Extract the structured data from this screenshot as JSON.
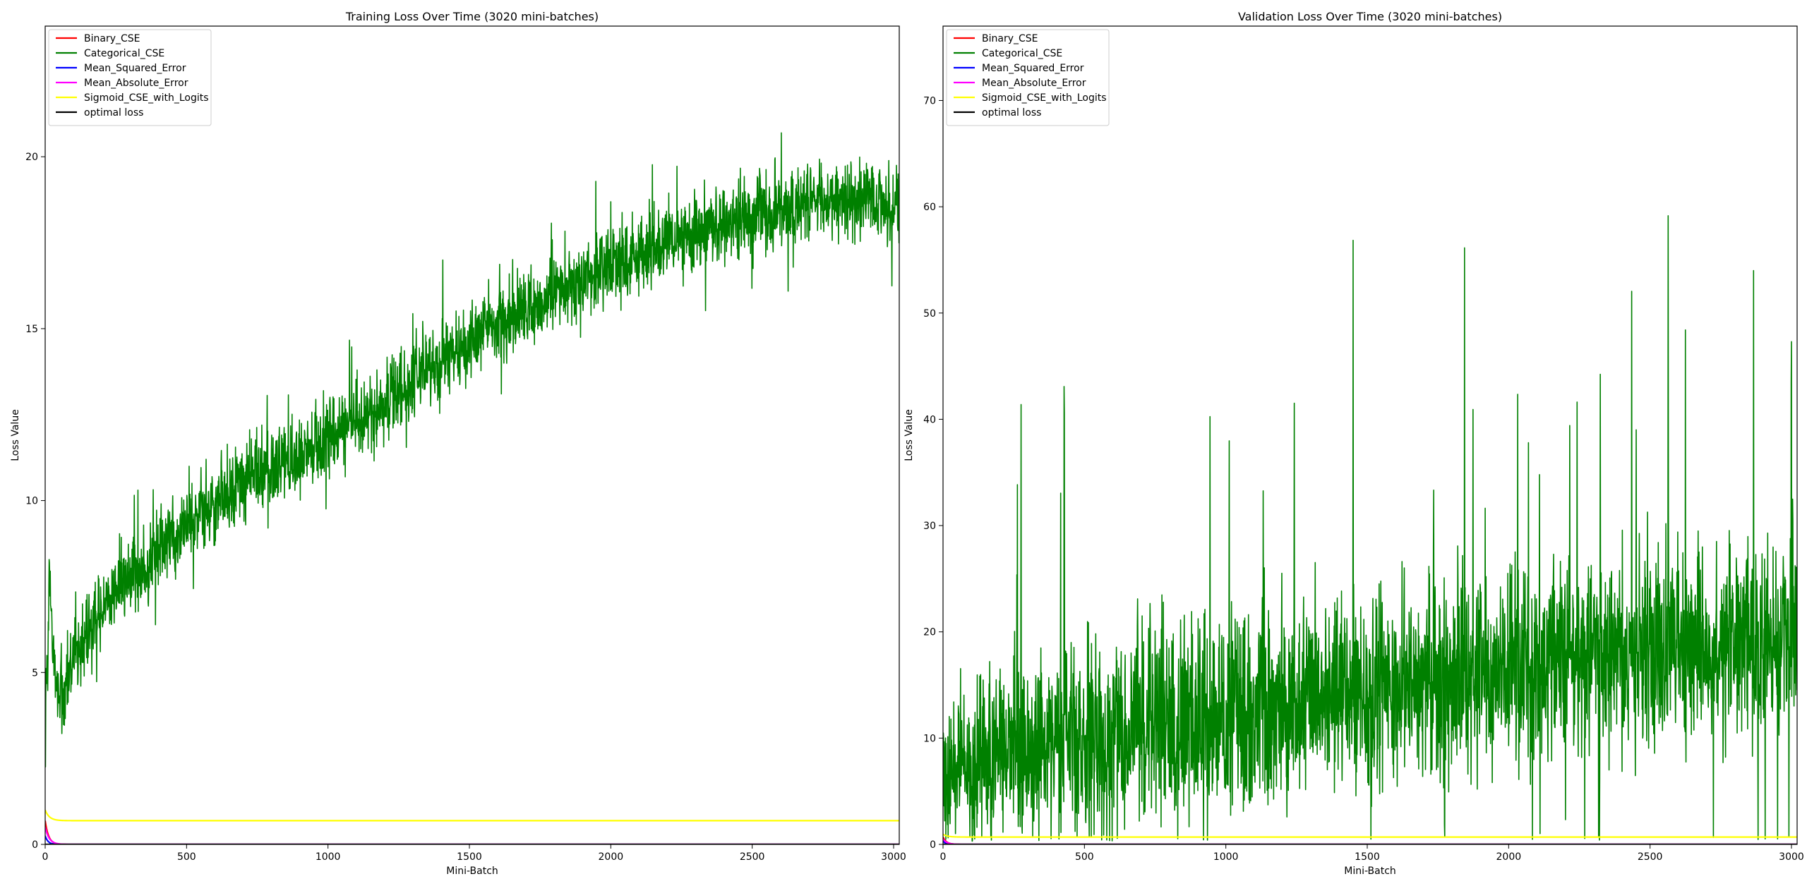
{
  "colors": {
    "Binary_CSE": "#ff0000",
    "Categorical_CSE": "#008000",
    "Mean_Squared_Error": "#0000ff",
    "Mean_Absolute_Error": "#ff00ff",
    "Sigmoid_CSE_with_Logits": "#ffff00",
    "optimal loss": "#000000"
  },
  "chart_data": [
    {
      "type": "line",
      "title": "Training Loss Over Time (3020 mini-batches)",
      "xlabel": "Mini-Batch",
      "ylabel": "Loss Value",
      "xlim": [
        0,
        3020
      ],
      "ylim": [
        0,
        23.8
      ],
      "xticks": [
        0,
        500,
        1000,
        1500,
        2000,
        2500,
        3000
      ],
      "yticks": [
        0,
        5,
        10,
        15,
        20
      ],
      "legend_position": "top-left",
      "grid": false,
      "series": [
        {
          "name": "Binary_CSE",
          "color": "#ff0000",
          "shape": "decay",
          "start": 0.69,
          "end": 0.0,
          "tau": 12,
          "noise": 0
        },
        {
          "name": "Categorical_CSE",
          "color": "#008000",
          "shape": "keypoints",
          "points": [
            [
              0,
              4.8
            ],
            [
              8,
              5.3
            ],
            [
              15,
              7.8
            ],
            [
              25,
              6.0
            ],
            [
              40,
              4.6
            ],
            [
              60,
              4.2
            ],
            [
              100,
              5.3
            ],
            [
              200,
              6.8
            ],
            [
              300,
              7.8
            ],
            [
              500,
              9.3
            ],
            [
              700,
              10.5
            ],
            [
              900,
              11.3
            ],
            [
              1000,
              11.9
            ],
            [
              1200,
              12.8
            ],
            [
              1400,
              14.0
            ],
            [
              1600,
              15.1
            ],
            [
              1800,
              16.0
            ],
            [
              2000,
              16.8
            ],
            [
              2200,
              17.5
            ],
            [
              2500,
              18.3
            ],
            [
              2800,
              18.7
            ],
            [
              3020,
              18.6
            ]
          ],
          "noise": 0.55,
          "spike_prob": 0.03,
          "spike_up": 2.6,
          "spike_down": 1.8
        },
        {
          "name": "Mean_Squared_Error",
          "color": "#0000ff",
          "shape": "decay",
          "start": 0.25,
          "end": 0.0,
          "tau": 10,
          "noise": 0
        },
        {
          "name": "Mean_Absolute_Error",
          "color": "#ff00ff",
          "shape": "decay",
          "start": 0.5,
          "end": 0.0,
          "tau": 14,
          "noise": 0
        },
        {
          "name": "Sigmoid_CSE_with_Logits",
          "color": "#ffff00",
          "shape": "decay",
          "start": 1.0,
          "end": 0.69,
          "tau": 15,
          "noise": 0
        },
        {
          "name": "optimal loss",
          "color": "#000000",
          "shape": "constant",
          "value": 0.0
        }
      ]
    },
    {
      "type": "line",
      "title": "Validation Loss Over Time (3020 mini-batches)",
      "xlabel": "Mini-Batch",
      "ylabel": "Loss Value",
      "xlim": [
        0,
        3020
      ],
      "ylim": [
        0,
        77
      ],
      "xticks": [
        0,
        500,
        1000,
        1500,
        2000,
        2500,
        3000
      ],
      "yticks": [
        0,
        10,
        20,
        30,
        40,
        50,
        60,
        70
      ],
      "legend_position": "top-left",
      "grid": false,
      "series": [
        {
          "name": "Binary_CSE",
          "color": "#ff0000",
          "shape": "decay",
          "start": 0.7,
          "end": 0.0,
          "tau": 12,
          "noise": 0
        },
        {
          "name": "Categorical_CSE",
          "color": "#008000",
          "shape": "keypoints",
          "points": [
            [
              0,
              6
            ],
            [
              50,
              7
            ],
            [
              100,
              6
            ],
            [
              200,
              8
            ],
            [
              300,
              9
            ],
            [
              500,
              10
            ],
            [
              800,
              11
            ],
            [
              1000,
              12
            ],
            [
              1500,
              14.5
            ],
            [
              2000,
              16.5
            ],
            [
              2500,
              18
            ],
            [
              3020,
              19
            ]
          ],
          "noise": 4.5,
          "spike_prob": 0.03,
          "spike_up": 38,
          "spike_down": 8
        },
        {
          "name": "Mean_Squared_Error",
          "color": "#0000ff",
          "shape": "decay",
          "start": 0.3,
          "end": 0.0,
          "tau": 10,
          "noise": 0
        },
        {
          "name": "Mean_Absolute_Error",
          "color": "#ff00ff",
          "shape": "decay",
          "start": 0.5,
          "end": 0.0,
          "tau": 14,
          "noise": 0
        },
        {
          "name": "Sigmoid_CSE_with_Logits",
          "color": "#ffff00",
          "shape": "decay",
          "start": 0.95,
          "end": 0.69,
          "tau": 15,
          "noise": 0
        },
        {
          "name": "optimal loss",
          "color": "#000000",
          "shape": "constant",
          "value": 0.0
        }
      ]
    }
  ]
}
